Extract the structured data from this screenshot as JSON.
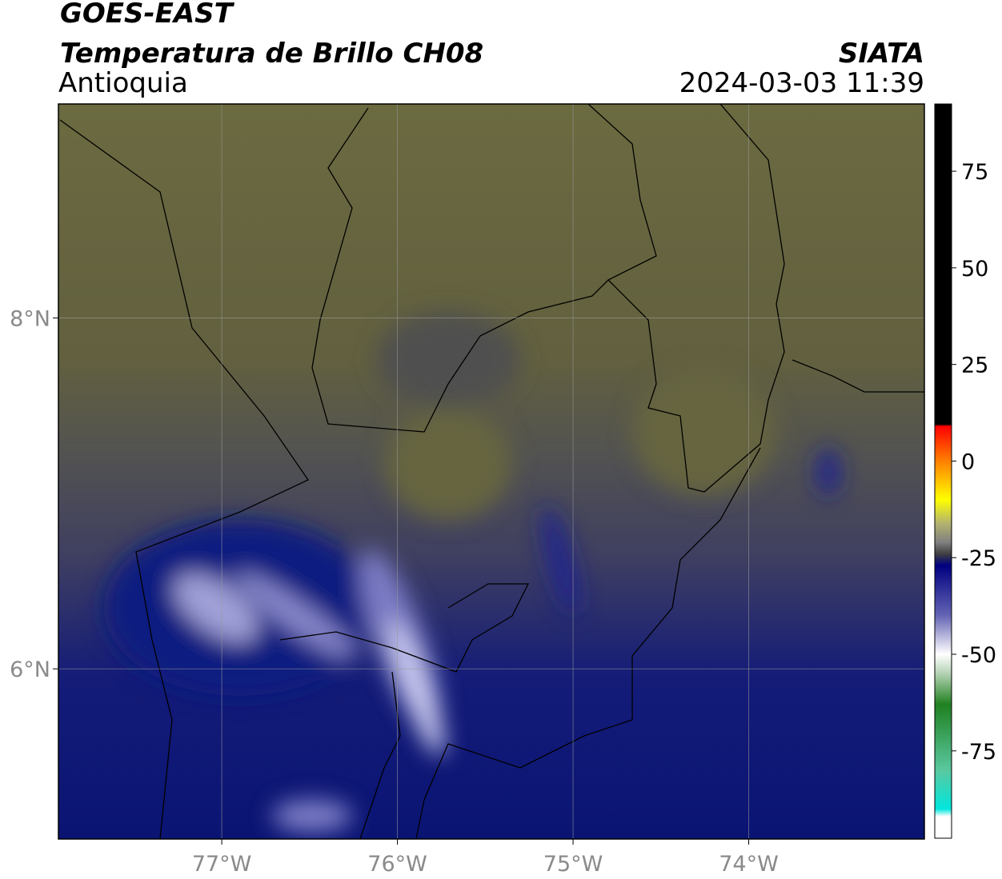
{
  "header": {
    "title": "GOES-EAST",
    "subtitle": "Temperatura de Brillo CH08",
    "region": "Antioquia",
    "source": "SIATA",
    "datetime": "2024-03-03 11:39"
  },
  "map": {
    "xlim": [
      -77.93,
      -73.0
    ],
    "ylim": [
      5.03,
      9.22
    ],
    "xticks": [
      {
        "value": -77,
        "label": "77°W"
      },
      {
        "value": -76,
        "label": "76°W"
      },
      {
        "value": -75,
        "label": "75°W"
      },
      {
        "value": -74,
        "label": "74°W"
      }
    ],
    "yticks": [
      {
        "value": 8,
        "label": "8°N"
      },
      {
        "value": 6,
        "label": "6°N"
      }
    ],
    "grid": true
  },
  "colorbar": {
    "clim": [
      -97.6,
      92.4
    ],
    "ticks": [
      75,
      50,
      25,
      0,
      -25,
      -50,
      -75
    ],
    "stops": [
      {
        "value": 92.4,
        "color": "#000000"
      },
      {
        "value": 9.5,
        "color": "#000000"
      },
      {
        "value": 9,
        "color": "#ff0000"
      },
      {
        "value": 0,
        "color": "#ff8000"
      },
      {
        "value": -10,
        "color": "#ffff00"
      },
      {
        "value": -16,
        "color": "#b4b46e"
      },
      {
        "value": -21,
        "color": "#808080"
      },
      {
        "value": -24,
        "color": "#404040"
      },
      {
        "value": -27,
        "color": "#000080"
      },
      {
        "value": -40,
        "color": "#6464b4"
      },
      {
        "value": -50,
        "color": "#ffffff"
      },
      {
        "value": -55,
        "color": "#b4d2b4"
      },
      {
        "value": -63,
        "color": "#208020"
      },
      {
        "value": -80,
        "color": "#5ac8a0"
      },
      {
        "value": -90,
        "color": "#00e6dc"
      },
      {
        "value": -92,
        "color": "#ffffff"
      },
      {
        "value": -97.6,
        "color": "#ffffff"
      }
    ]
  }
}
